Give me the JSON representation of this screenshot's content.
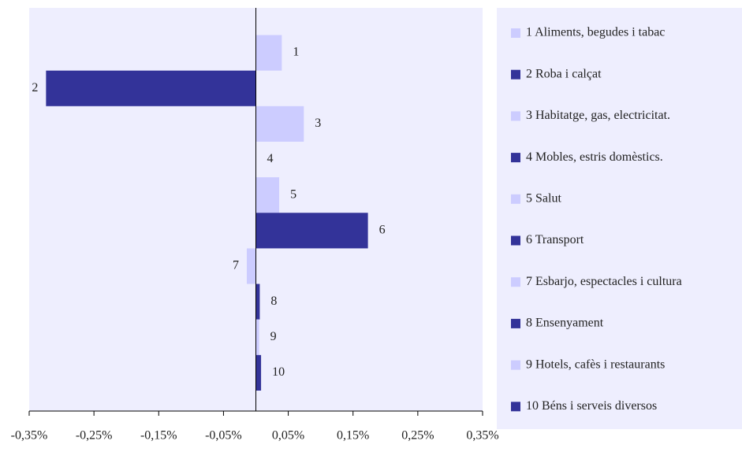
{
  "chart_data": {
    "type": "bar",
    "orientation": "horizontal",
    "categories": [
      "1 Aliments, begudes i tabac",
      "2 Roba i calçat",
      "3 Habitatge, gas, electricitat.",
      "4 Mobles, estris domèstics.",
      "5 Salut",
      "6 Transport",
      "7 Esbarjo, espectacles i cultura",
      "8 Ensenyament",
      "9 Hotels, cafès i restaurants",
      "10 Béns i serveis diversos"
    ],
    "bar_labels": [
      "1",
      "2",
      "3",
      "4",
      "5",
      "6",
      "7",
      "8",
      "9",
      "10"
    ],
    "values": [
      0.04,
      -0.324,
      0.074,
      0,
      0.036,
      0.173,
      -0.014,
      0.006,
      0.005,
      0.008
    ],
    "colors": [
      "#ccccff",
      "#333399",
      "#ccccff",
      "#333399",
      "#ccccff",
      "#333399",
      "#ccccff",
      "#333399",
      "#ccccff",
      "#333399"
    ],
    "xlim": [
      -0.35,
      0.35
    ],
    "xticks": [
      {
        "value": -0.35,
        "label": "-0,35%"
      },
      {
        "value": -0.25,
        "label": "-0,25%"
      },
      {
        "value": -0.15,
        "label": "-0,15%"
      },
      {
        "value": -0.05,
        "label": "-0,05%"
      },
      {
        "value": 0.05,
        "label": "0,05%"
      },
      {
        "value": 0.15,
        "label": "0,15%"
      },
      {
        "value": 0.25,
        "label": "0,25%"
      },
      {
        "value": 0.35,
        "label": "0,35%"
      }
    ],
    "legend": "right"
  }
}
